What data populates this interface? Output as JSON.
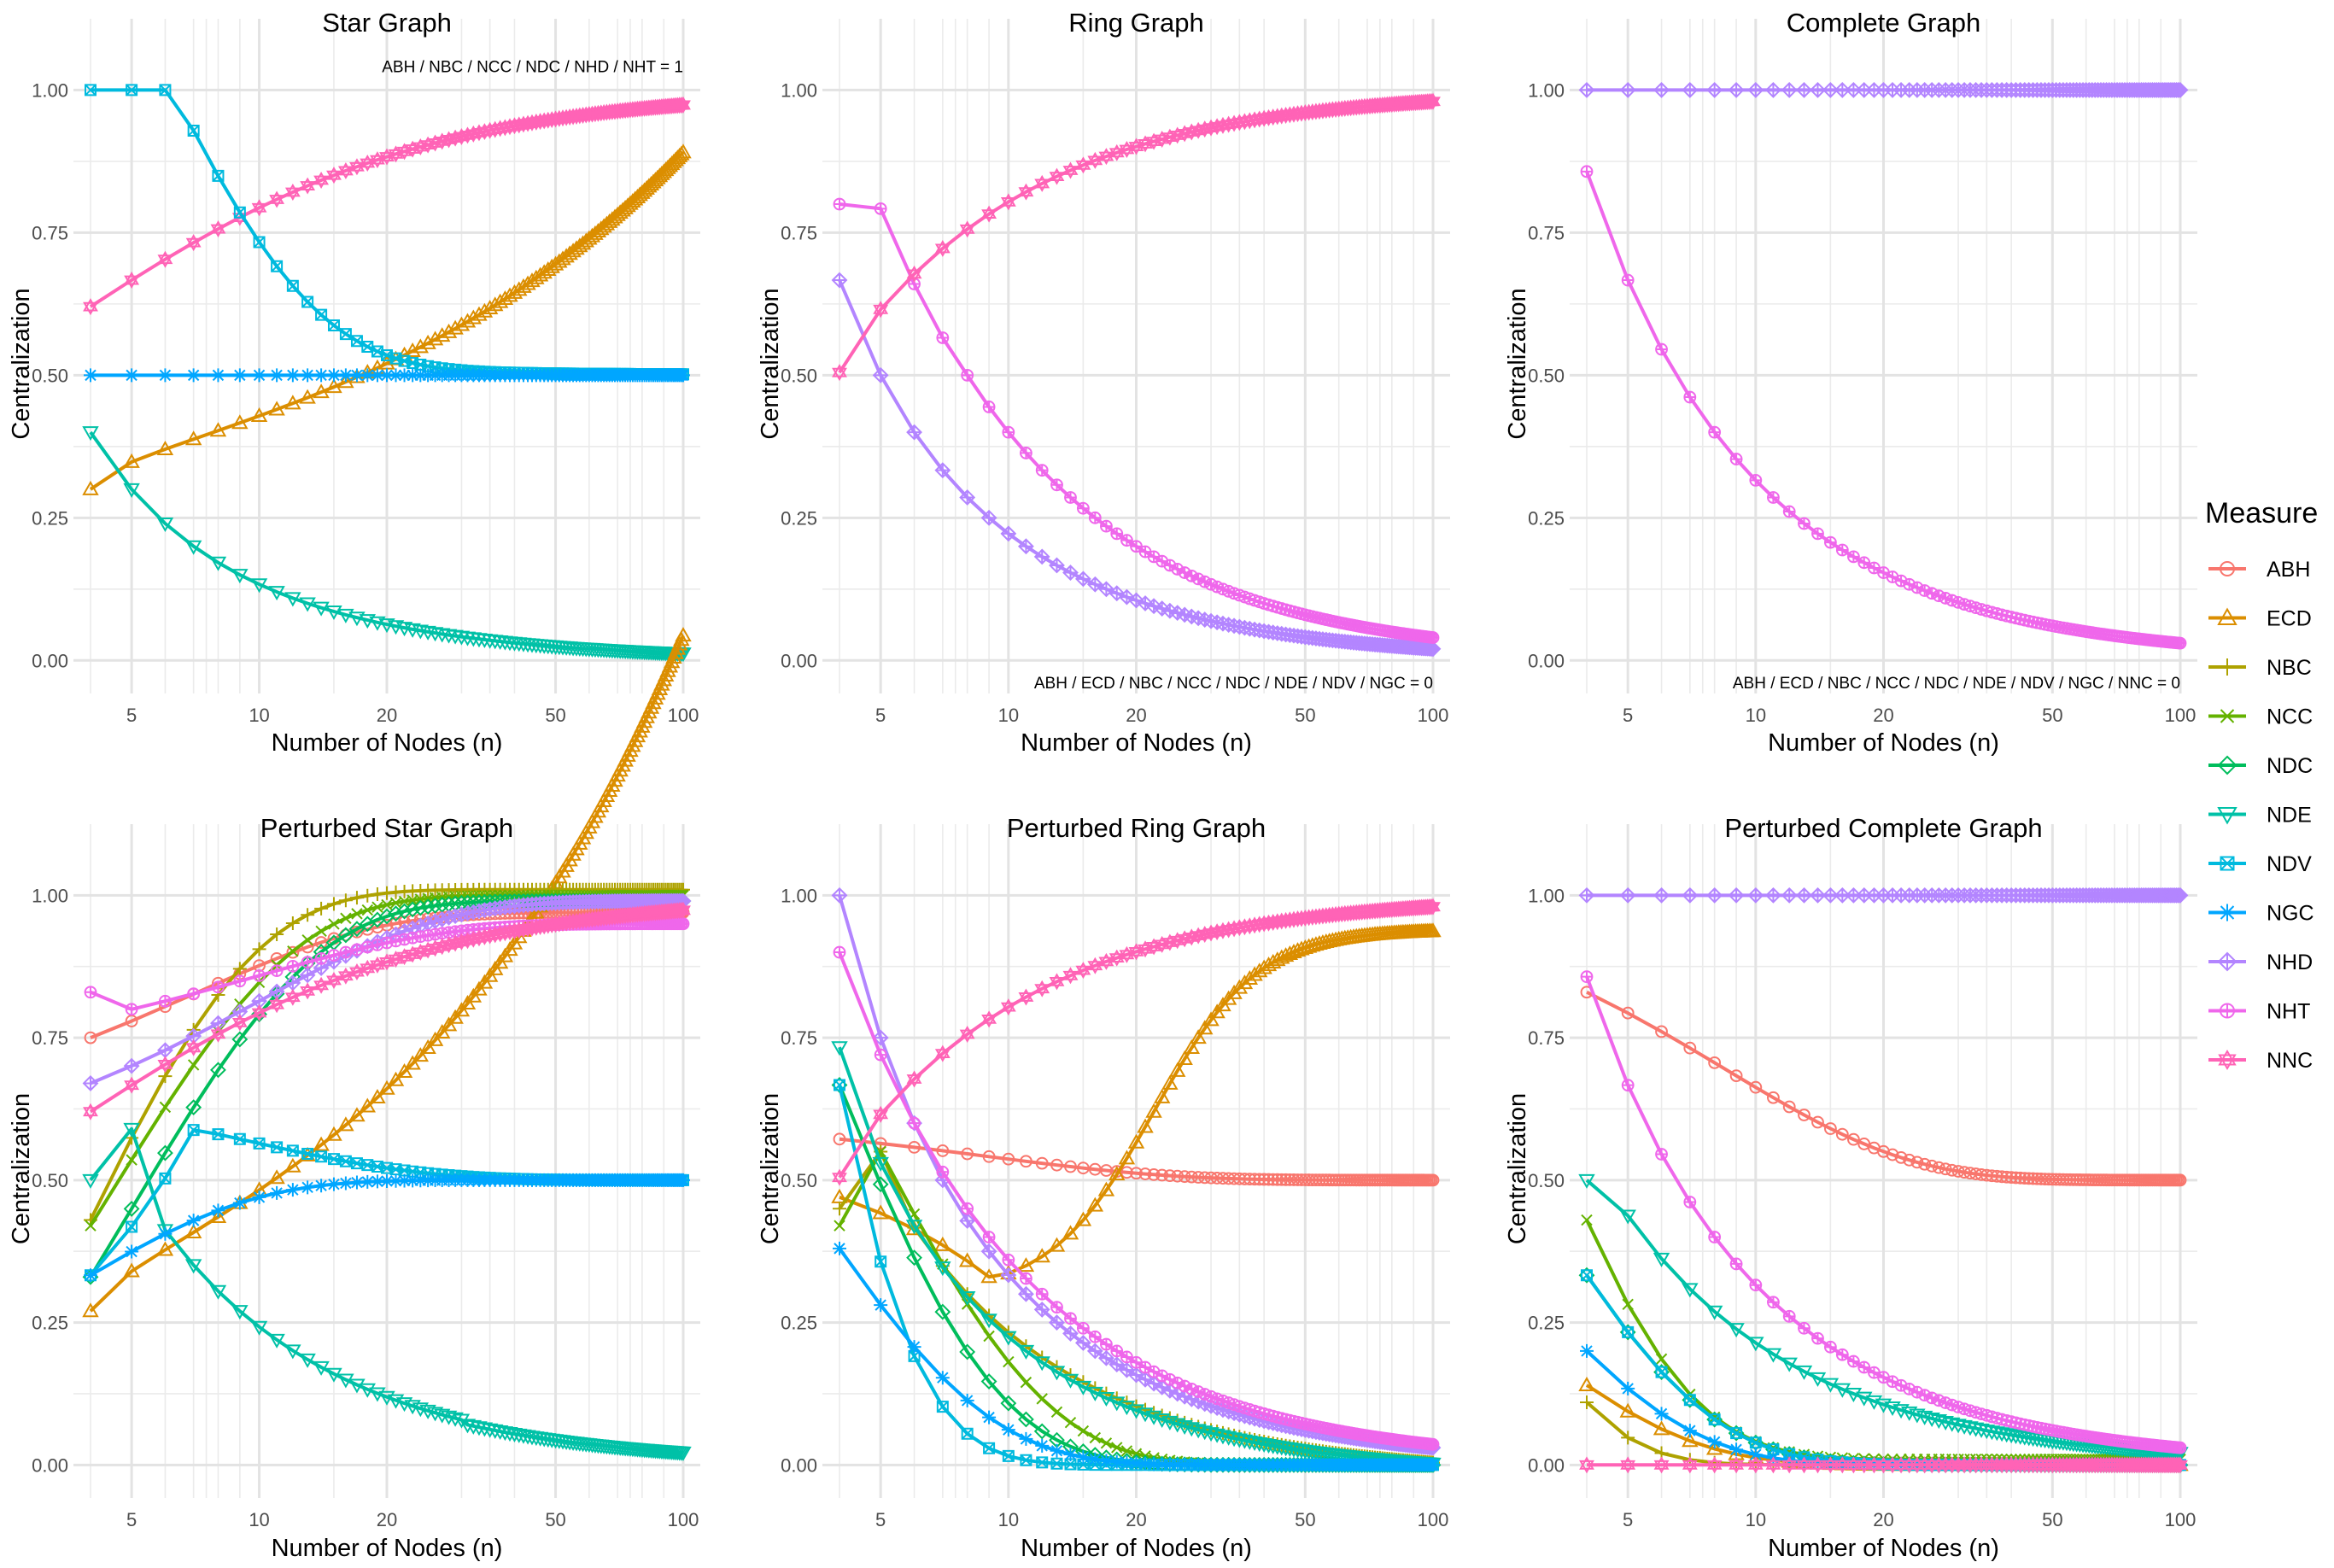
{
  "chart_data": {
    "type": "line",
    "x_scale": "log10",
    "legend": {
      "title": "Measure",
      "placement": "right",
      "entries": [
        {
          "name": "ABH",
          "color": "#F8766D",
          "marker": "circle"
        },
        {
          "name": "ECD",
          "color": "#DB8E00",
          "marker": "triangle-up"
        },
        {
          "name": "NBC",
          "color": "#AEA200",
          "marker": "plus"
        },
        {
          "name": "NCC",
          "color": "#64B200",
          "marker": "cross"
        },
        {
          "name": "NDC",
          "color": "#00BD5C",
          "marker": "diamond"
        },
        {
          "name": "NDE",
          "color": "#00C1A7",
          "marker": "triangle-down"
        },
        {
          "name": "NDV",
          "color": "#00BADE",
          "marker": "square-cross"
        },
        {
          "name": "NGC",
          "color": "#00A6FF",
          "marker": "asterisk"
        },
        {
          "name": "NHD",
          "color": "#B385FF",
          "marker": "diamond-plus"
        },
        {
          "name": "NHT",
          "color": "#EF67EB",
          "marker": "circle-plus"
        },
        {
          "name": "NNC",
          "color": "#FF63B6",
          "marker": "star-of-david"
        }
      ]
    },
    "panels": [
      {
        "title": "Star Graph",
        "xlabel": "Number of Nodes (n)",
        "ylabel": "Centralization",
        "xticks": [
          5,
          10,
          20,
          50,
          100
        ],
        "yticks": [
          "0.00",
          "0.25",
          "0.50",
          "0.75",
          "1.00"
        ],
        "xlim": [
          4,
          100
        ],
        "ylim": [
          -0.04,
          1.08
        ],
        "annotation": {
          "text": "ABH / NBC / NCC / NDC / NHD / NHT = 1",
          "x": 100,
          "y": 1.04,
          "align": "end"
        },
        "series": [
          {
            "name": "NNC",
            "f": "star_nnc"
          },
          {
            "name": "ECD",
            "f": "star_ecd"
          },
          {
            "name": "NDE",
            "f": "star_nde"
          },
          {
            "name": "NDV",
            "f": "star_ndv"
          },
          {
            "name": "NGC",
            "f": "half"
          }
        ]
      },
      {
        "title": "Ring Graph",
        "xlabel": "Number of Nodes (n)",
        "ylabel": "Centralization",
        "xticks": [
          5,
          10,
          20,
          50,
          100
        ],
        "yticks": [
          "0.00",
          "0.25",
          "0.50",
          "0.75",
          "1.00"
        ],
        "xlim": [
          4,
          100
        ],
        "ylim": [
          -0.04,
          1.08
        ],
        "annotation": {
          "text": "ABH / ECD / NBC / NCC / NDC / NDE / NDV / NGC = 0",
          "x": 100,
          "y": -0.04,
          "align": "end"
        },
        "series": [
          {
            "name": "NHD",
            "f": "ring_nhd"
          },
          {
            "name": "NHT",
            "f": "ring_nht"
          },
          {
            "name": "NNC",
            "f": "ring_nnc"
          }
        ]
      },
      {
        "title": "Complete Graph",
        "xlabel": "Number of Nodes (n)",
        "ylabel": "Centralization",
        "xticks": [
          5,
          10,
          20,
          50,
          100
        ],
        "yticks": [
          "0.00",
          "0.25",
          "0.50",
          "0.75",
          "1.00"
        ],
        "xlim": [
          4,
          100
        ],
        "ylim": [
          -0.04,
          1.08
        ],
        "annotation": {
          "text": "ABH / ECD / NBC / NCC / NDC / NDE / NDV / NGC / NNC = 0",
          "x": 100,
          "y": -0.04,
          "align": "end"
        },
        "series": [
          {
            "name": "NHD",
            "f": "one"
          },
          {
            "name": "NHT",
            "f": "comp_nht"
          }
        ]
      },
      {
        "title": "Perturbed Star Graph",
        "xlabel": "Number of Nodes (n)",
        "ylabel": "Centralization",
        "xticks": [
          5,
          10,
          20,
          50,
          100
        ],
        "yticks": [
          "0.00",
          "0.25",
          "0.50",
          "0.75",
          "1.00"
        ],
        "xlim": [
          4,
          100
        ],
        "ylim": [
          -0.04,
          1.08
        ],
        "series": [
          {
            "name": "ABH",
            "f": "pstar_abh"
          },
          {
            "name": "ECD",
            "f": "pstar_ecd"
          },
          {
            "name": "NBC",
            "f": "pstar_nbc"
          },
          {
            "name": "NCC",
            "f": "pstar_ncc"
          },
          {
            "name": "NDC",
            "f": "pstar_ndc"
          },
          {
            "name": "NDE",
            "f": "pstar_nde"
          },
          {
            "name": "NDV",
            "f": "pstar_ndv"
          },
          {
            "name": "NGC",
            "f": "pstar_ngc"
          },
          {
            "name": "NHD",
            "f": "pstar_nhd"
          },
          {
            "name": "NHT",
            "f": "pstar_nht"
          },
          {
            "name": "NNC",
            "f": "star_nnc"
          }
        ]
      },
      {
        "title": "Perturbed Ring Graph",
        "xlabel": "Number of Nodes (n)",
        "ylabel": "Centralization",
        "xticks": [
          5,
          10,
          20,
          50,
          100
        ],
        "yticks": [
          "0.00",
          "0.25",
          "0.50",
          "0.75",
          "1.00"
        ],
        "xlim": [
          4,
          100
        ],
        "ylim": [
          -0.04,
          1.08
        ],
        "series": [
          {
            "name": "ABH",
            "f": "pring_abh"
          },
          {
            "name": "ECD",
            "f": "pring_ecd"
          },
          {
            "name": "NBC",
            "f": "pring_nbc"
          },
          {
            "name": "NCC",
            "f": "pring_ncc"
          },
          {
            "name": "NDC",
            "f": "pring_ndc"
          },
          {
            "name": "NDE",
            "f": "pring_nde"
          },
          {
            "name": "NDV",
            "f": "pring_ndv"
          },
          {
            "name": "NGC",
            "f": "pring_ngc"
          },
          {
            "name": "NHD",
            "f": "pring_nhd"
          },
          {
            "name": "NHT",
            "f": "pring_nht"
          },
          {
            "name": "NNC",
            "f": "ring_nnc"
          }
        ]
      },
      {
        "title": "Perturbed Complete Graph",
        "xlabel": "Number of Nodes (n)",
        "ylabel": "Centralization",
        "xticks": [
          5,
          10,
          20,
          50,
          100
        ],
        "yticks": [
          "0.00",
          "0.25",
          "0.50",
          "0.75",
          "1.00"
        ],
        "xlim": [
          4,
          100
        ],
        "ylim": [
          -0.04,
          1.08
        ],
        "series": [
          {
            "name": "ABH",
            "f": "pcomp_abh"
          },
          {
            "name": "ECD",
            "f": "pcomp_ecd"
          },
          {
            "name": "NBC",
            "f": "pcomp_nbc"
          },
          {
            "name": "NCC",
            "f": "pcomp_ncc"
          },
          {
            "name": "NDC",
            "f": "pcomp_ndc"
          },
          {
            "name": "NDE",
            "f": "pcomp_nde"
          },
          {
            "name": "NDV",
            "f": "pcomp_ndc"
          },
          {
            "name": "NGC",
            "f": "pcomp_ngc"
          },
          {
            "name": "NHD",
            "f": "one"
          },
          {
            "name": "NHT",
            "f": "comp_nht"
          },
          {
            "name": "NNC",
            "f": "zero"
          }
        ]
      }
    ]
  }
}
